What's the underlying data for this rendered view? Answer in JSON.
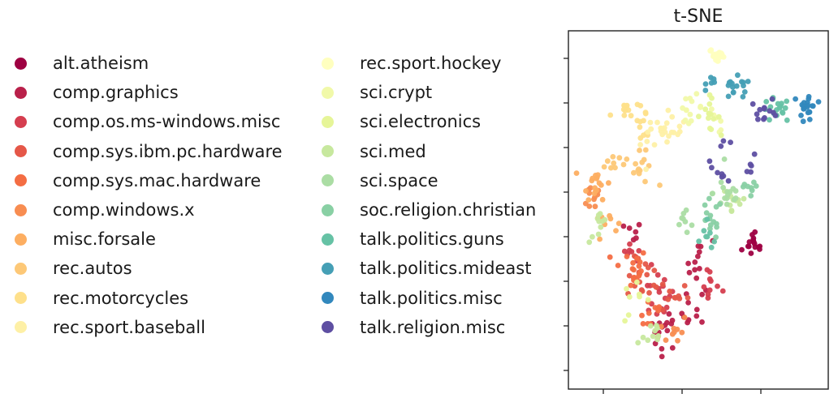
{
  "chart_data": {
    "type": "scatter",
    "title": "t-SNE",
    "xlabel": "",
    "ylabel": "",
    "xlim": [
      0,
      100
    ],
    "ylim": [
      0,
      100
    ],
    "grid": false,
    "legend": "left",
    "series": [
      {
        "name": "alt.atheism",
        "color": "#9e0142",
        "clusters": [
          [
            74,
            39,
            5,
            2,
            10
          ],
          [
            71,
            42,
            3,
            2,
            5
          ]
        ]
      },
      {
        "name": "comp.graphics",
        "color": "#b9204a",
        "clusters": [
          [
            36,
            15,
            5,
            5,
            16
          ],
          [
            48,
            20,
            4,
            6,
            10
          ],
          [
            51,
            35,
            5,
            7,
            12
          ],
          [
            23,
            43,
            3,
            3,
            6
          ]
        ]
      },
      {
        "name": "comp.os.ms-windows.misc",
        "color": "#d53e4f",
        "clusters": [
          [
            33,
            25,
            6,
            6,
            16
          ],
          [
            55,
            28,
            4,
            5,
            10
          ],
          [
            22,
            36,
            4,
            4,
            8
          ]
        ]
      },
      {
        "name": "comp.sys.ibm.pc.hardware",
        "color": "#e55748",
        "clusters": [
          [
            28,
            30,
            6,
            5,
            16
          ],
          [
            40,
            25,
            5,
            5,
            10
          ]
        ]
      },
      {
        "name": "comp.sys.mac.hardware",
        "color": "#f46d43",
        "clusters": [
          [
            22,
            33,
            6,
            5,
            18
          ],
          [
            30,
            20,
            5,
            5,
            10
          ]
        ]
      },
      {
        "name": "comp.windows.x",
        "color": "#f88d51",
        "clusters": [
          [
            8,
            54,
            5,
            4,
            12
          ],
          [
            40,
            15,
            5,
            4,
            10
          ]
        ]
      },
      {
        "name": "misc.forsale",
        "color": "#fdae61",
        "clusters": [
          [
            8,
            58,
            5,
            4,
            16
          ],
          [
            12,
            47,
            4,
            4,
            8
          ]
        ]
      },
      {
        "name": "rec.autos",
        "color": "#fdc877",
        "clusters": [
          [
            26,
            62,
            5,
            4,
            14
          ],
          [
            15,
            64,
            4,
            3,
            8
          ]
        ]
      },
      {
        "name": "rec.motorcycles",
        "color": "#fee08b",
        "clusters": [
          [
            20,
            79,
            5,
            3,
            14
          ],
          [
            28,
            74,
            4,
            4,
            8
          ]
        ]
      },
      {
        "name": "rec.sport.baseball",
        "color": "#fef0a6",
        "clusters": [
          [
            39,
            75,
            5,
            4,
            18
          ],
          [
            31,
            70,
            4,
            4,
            8
          ]
        ]
      },
      {
        "name": "rec.sport.hockey",
        "color": "#ffffbf",
        "clusters": [
          [
            58,
            95,
            3,
            2,
            20
          ]
        ]
      },
      {
        "name": "sci.crypt",
        "color": "#f1f9a9",
        "clusters": [
          [
            47,
            80,
            4,
            3,
            12
          ],
          [
            57,
            76,
            4,
            3,
            6
          ]
        ]
      },
      {
        "name": "sci.electronics",
        "color": "#e6f598",
        "clusters": [
          [
            54,
            78,
            4,
            4,
            14
          ],
          [
            24,
            23,
            5,
            5,
            8
          ]
        ]
      },
      {
        "name": "sci.med",
        "color": "#c7e89e",
        "clusters": [
          [
            10,
            45,
            4,
            4,
            10
          ],
          [
            30,
            13,
            5,
            5,
            10
          ],
          [
            65,
            53,
            5,
            5,
            10
          ]
        ]
      },
      {
        "name": "sci.space",
        "color": "#abdda4",
        "clusters": [
          [
            62,
            55,
            5,
            5,
            16
          ],
          [
            45,
            47,
            4,
            4,
            8
          ]
        ]
      },
      {
        "name": "soc.religion.christian",
        "color": "#89d0a4",
        "clusters": [
          [
            55,
            47,
            4,
            5,
            14
          ],
          [
            70,
            55,
            4,
            4,
            8
          ]
        ]
      },
      {
        "name": "talk.politics.guns",
        "color": "#66c2a5",
        "clusters": [
          [
            82,
            79,
            5,
            3,
            18
          ],
          [
            55,
            43,
            3,
            4,
            8
          ]
        ]
      },
      {
        "name": "talk.politics.mideast",
        "color": "#459fb5",
        "clusters": [
          [
            65,
            85,
            6,
            3,
            16
          ],
          [
            57,
            88,
            3,
            2,
            6
          ]
        ]
      },
      {
        "name": "talk.politics.misc",
        "color": "#3288bd",
        "clusters": [
          [
            95,
            80,
            3,
            4,
            20
          ]
        ]
      },
      {
        "name": "talk.religion.misc",
        "color": "#5e4fa2",
        "clusters": [
          [
            77,
            79,
            5,
            3,
            12
          ],
          [
            60,
            65,
            4,
            6,
            10
          ],
          [
            72,
            62,
            3,
            3,
            5
          ]
        ]
      }
    ]
  }
}
